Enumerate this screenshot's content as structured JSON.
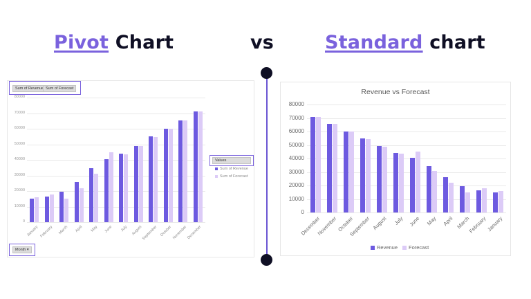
{
  "header": {
    "left_accent": "Pivot",
    "left_rest": " Chart",
    "vs": "vs",
    "right_accent": "Standard",
    "right_rest": " chart"
  },
  "colors": {
    "accent": "#7a62dd",
    "revenue": "#6d5ae0",
    "forecast": "#dccbf7",
    "dark": "#0f0f24"
  },
  "pivot": {
    "value_buttons": [
      "Sum of Revenue",
      "Sum of Forecast"
    ],
    "axis_button": "Month",
    "legend_title": "Values",
    "legend": [
      "Sum of Revenue",
      "Sum of Forecast"
    ]
  },
  "standard": {
    "title": "Revenue vs Forecast",
    "legend": [
      "Revenue",
      "Forecast"
    ]
  },
  "chart_data": [
    {
      "type": "bar",
      "title": "",
      "categories": [
        "January",
        "February",
        "March",
        "April",
        "May",
        "June",
        "July",
        "August",
        "September",
        "October",
        "November",
        "December"
      ],
      "series": [
        {
          "name": "Sum of Revenue",
          "values": [
            15000,
            16500,
            19500,
            26000,
            34500,
            40500,
            44000,
            49000,
            55000,
            60000,
            65500,
            71000
          ]
        },
        {
          "name": "Sum of Forecast",
          "values": [
            16000,
            18000,
            15000,
            22000,
            31000,
            45000,
            43500,
            48800,
            54500,
            60000,
            65500,
            71000
          ]
        }
      ],
      "yticks": [
        0,
        10000,
        20000,
        30000,
        40000,
        50000,
        60000,
        70000,
        80000
      ],
      "ylim": [
        0,
        80000
      ],
      "xlabel": "",
      "ylabel": "",
      "grid": true,
      "legend_position": "right"
    },
    {
      "type": "bar",
      "title": "Revenue vs Forecast",
      "categories": [
        "December",
        "November",
        "October",
        "September",
        "August",
        "July",
        "June",
        "May",
        "April",
        "March",
        "February",
        "January"
      ],
      "series": [
        {
          "name": "Revenue",
          "values": [
            71000,
            65500,
            60000,
            55000,
            49000,
            44000,
            40500,
            34500,
            26000,
            19500,
            16500,
            15000
          ]
        },
        {
          "name": "Forecast",
          "values": [
            71000,
            65500,
            60000,
            54500,
            48800,
            43500,
            45000,
            31000,
            22000,
            15000,
            18000,
            16000
          ]
        }
      ],
      "yticks": [
        0,
        10000,
        20000,
        30000,
        40000,
        50000,
        60000,
        70000,
        80000
      ],
      "ylim": [
        0,
        80000
      ],
      "xlabel": "",
      "ylabel": "",
      "grid": true,
      "legend_position": "bottom"
    }
  ]
}
